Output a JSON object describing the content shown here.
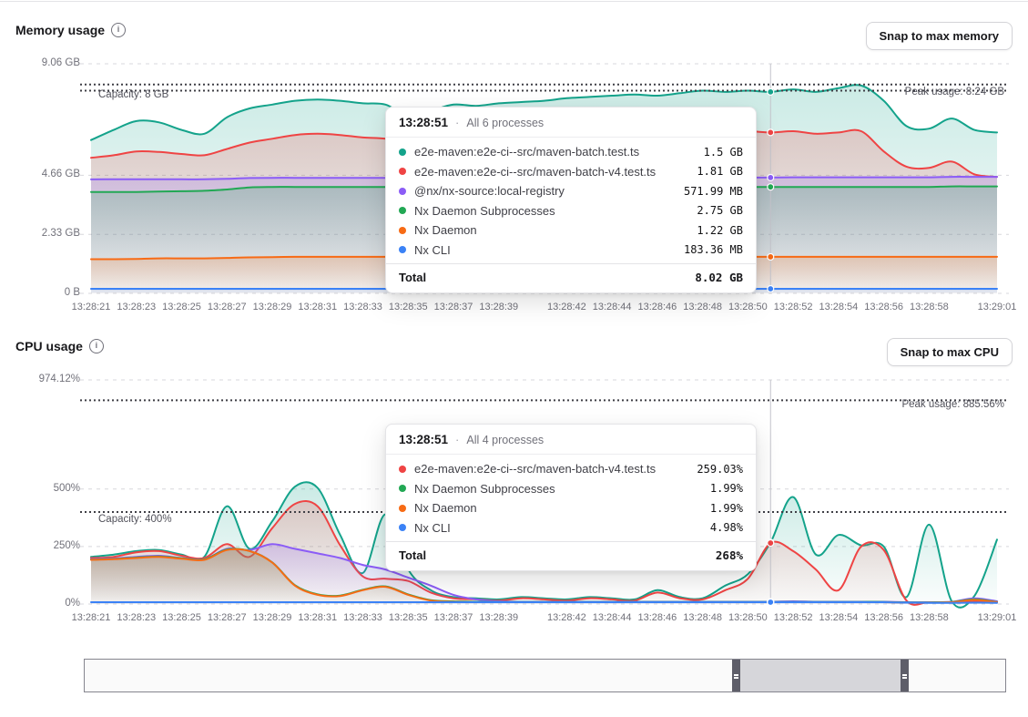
{
  "memory_section": {
    "title": "Memory usage",
    "button": "Snap to max memory",
    "tooltip": {
      "time": "13:28:51",
      "separator": "·",
      "subtitle": "All 6 processes",
      "rows": [
        {
          "name": "e2e-maven:e2e-ci--src/maven-batch.test.ts",
          "value": "1.5 GB",
          "color": "#14a38b"
        },
        {
          "name": "e2e-maven:e2e-ci--src/maven-batch-v4.test.ts",
          "value": "1.81 GB",
          "color": "#ef4444"
        },
        {
          "name": "@nx/nx-source:local-registry",
          "value": "571.99 MB",
          "color": "#8b5cf6"
        },
        {
          "name": "Nx Daemon Subprocesses",
          "value": "2.75 GB",
          "color": "#22a854"
        },
        {
          "name": "Nx Daemon",
          "value": "1.22 GB",
          "color": "#f76b15"
        },
        {
          "name": "Nx CLI",
          "value": "183.36 MB",
          "color": "#3b82f6"
        }
      ],
      "total_label": "Total",
      "total_value": "8.02 GB"
    }
  },
  "cpu_section": {
    "title": "CPU usage",
    "button": "Snap to max CPU",
    "tooltip": {
      "time": "13:28:51",
      "separator": "·",
      "subtitle": "All 4 processes",
      "rows": [
        {
          "name": "e2e-maven:e2e-ci--src/maven-batch-v4.test.ts",
          "value": "259.03%",
          "color": "#ef4444"
        },
        {
          "name": "Nx Daemon Subprocesses",
          "value": "1.99%",
          "color": "#22a854"
        },
        {
          "name": "Nx Daemon",
          "value": "1.99%",
          "color": "#f76b15"
        },
        {
          "name": "Nx CLI",
          "value": "4.98%",
          "color": "#3b82f6"
        }
      ],
      "total_label": "Total",
      "total_value": "268%"
    }
  },
  "chart_data": [
    {
      "id": "memory",
      "type": "area",
      "title": "Memory usage",
      "unit": "GB",
      "ylim": [
        0,
        9.06
      ],
      "grid": true,
      "yticks": [
        {
          "v": 9.06,
          "label": "9.06 GB"
        },
        {
          "v": 4.66,
          "label": "4.66 GB"
        },
        {
          "v": 2.33,
          "label": "2.33 GB"
        },
        {
          "v": 0,
          "label": "0 B"
        }
      ],
      "xticks": [
        {
          "t": 0,
          "label": "13:28:21"
        },
        {
          "t": 2,
          "label": "13:28:23"
        },
        {
          "t": 4,
          "label": "13:28:25"
        },
        {
          "t": 6,
          "label": "13:28:27"
        },
        {
          "t": 8,
          "label": "13:28:29"
        },
        {
          "t": 10,
          "label": "13:28:31"
        },
        {
          "t": 12,
          "label": "13:28:33"
        },
        {
          "t": 14,
          "label": "13:28:35"
        },
        {
          "t": 16,
          "label": "13:28:37"
        },
        {
          "t": 18,
          "label": "13:28:39"
        },
        {
          "t": 21,
          "label": "13:28:42"
        },
        {
          "t": 23,
          "label": "13:28:44"
        },
        {
          "t": 25,
          "label": "13:28:46"
        },
        {
          "t": 27,
          "label": "13:28:48"
        },
        {
          "t": 29,
          "label": "13:28:50"
        },
        {
          "t": 31,
          "label": "13:28:52"
        },
        {
          "t": 33,
          "label": "13:28:54"
        },
        {
          "t": 35,
          "label": "13:28:56"
        },
        {
          "t": 37,
          "label": "13:28:58"
        },
        {
          "t": 40,
          "label": "13:29:01"
        }
      ],
      "capacity": {
        "v": 8,
        "label": "Capacity: 8 GB"
      },
      "peak": {
        "v": 8.24,
        "label": "Peak usage: 8.24 GB"
      },
      "crosshair_t": 30,
      "series": [
        {
          "name": "e2e-maven:e2e-ci--src/maven-batch.test.ts",
          "color": "#14a38b",
          "values": [
            6.05,
            6.45,
            6.8,
            6.75,
            6.45,
            6.3,
            6.95,
            7.3,
            7.45,
            7.6,
            7.65,
            7.6,
            7.5,
            7.45,
            7.0,
            7.2,
            7.45,
            7.4,
            7.5,
            7.55,
            7.6,
            7.7,
            7.75,
            7.8,
            7.85,
            7.8,
            7.9,
            8.0,
            7.95,
            8.0,
            7.95,
            8.05,
            7.95,
            8.1,
            8.2,
            7.6,
            6.6,
            6.5,
            6.9,
            6.45,
            6.35
          ]
        },
        {
          "name": "e2e-maven:e2e-ci--src/maven-batch-v4.test.ts",
          "color": "#ef4444",
          "values": [
            5.35,
            5.45,
            5.6,
            5.58,
            5.5,
            5.45,
            5.7,
            5.95,
            6.1,
            6.25,
            6.3,
            6.25,
            6.15,
            6.1,
            5.9,
            6.0,
            6.1,
            6.1,
            6.15,
            6.15,
            6.2,
            6.25,
            6.3,
            6.3,
            6.35,
            6.3,
            6.35,
            6.4,
            6.35,
            6.4,
            6.35,
            6.4,
            6.3,
            6.35,
            6.4,
            5.6,
            5.0,
            4.95,
            5.2,
            4.7,
            4.6
          ]
        },
        {
          "name": "@nx/nx-source:local-registry",
          "color": "#8b5cf6",
          "values": [
            4.5,
            4.5,
            4.5,
            4.5,
            4.5,
            4.5,
            4.52,
            4.55,
            4.56,
            4.56,
            4.56,
            4.56,
            4.56,
            4.56,
            4.56,
            4.56,
            4.56,
            4.56,
            4.56,
            4.56,
            4.57,
            4.57,
            4.57,
            4.57,
            4.57,
            4.57,
            4.57,
            4.57,
            4.57,
            4.57,
            4.57,
            4.58,
            4.58,
            4.58,
            4.58,
            4.58,
            4.58,
            4.58,
            4.6,
            4.6,
            4.6
          ]
        },
        {
          "name": "Nx Daemon Subprocesses",
          "color": "#22a854",
          "values": [
            4.0,
            4.0,
            4.0,
            4.02,
            4.03,
            4.05,
            4.1,
            4.18,
            4.2,
            4.2,
            4.2,
            4.2,
            4.2,
            4.2,
            4.2,
            4.2,
            4.2,
            4.2,
            4.2,
            4.2,
            4.2,
            4.2,
            4.2,
            4.2,
            4.2,
            4.2,
            4.2,
            4.2,
            4.2,
            4.2,
            4.2,
            4.2,
            4.2,
            4.2,
            4.2,
            4.2,
            4.2,
            4.2,
            4.22,
            4.22,
            4.22
          ]
        },
        {
          "name": "Nx Daemon",
          "color": "#f76b15",
          "values": [
            1.35,
            1.35,
            1.36,
            1.38,
            1.38,
            1.38,
            1.4,
            1.42,
            1.43,
            1.44,
            1.44,
            1.44,
            1.44,
            1.44,
            1.44,
            1.44,
            1.44,
            1.44,
            1.44,
            1.44,
            1.44,
            1.44,
            1.44,
            1.44,
            1.44,
            1.44,
            1.44,
            1.44,
            1.44,
            1.44,
            1.44,
            1.44,
            1.44,
            1.44,
            1.44,
            1.44,
            1.44,
            1.44,
            1.44,
            1.44,
            1.44
          ]
        },
        {
          "name": "Nx CLI",
          "color": "#3b82f6",
          "values": [
            0.18,
            0.18,
            0.18,
            0.18,
            0.18,
            0.18,
            0.18,
            0.18,
            0.18,
            0.18,
            0.18,
            0.18,
            0.18,
            0.18,
            0.18,
            0.18,
            0.18,
            0.18,
            0.18,
            0.18,
            0.18,
            0.18,
            0.18,
            0.18,
            0.18,
            0.18,
            0.18,
            0.18,
            0.18,
            0.18,
            0.18,
            0.18,
            0.18,
            0.18,
            0.18,
            0.18,
            0.18,
            0.18,
            0.18,
            0.18,
            0.18
          ]
        }
      ]
    },
    {
      "id": "cpu",
      "type": "area",
      "title": "CPU usage",
      "unit": "%",
      "ylim": [
        0,
        974.12
      ],
      "grid": true,
      "yticks": [
        {
          "v": 974.12,
          "label": "974.12%"
        },
        {
          "v": 500,
          "label": "500%"
        },
        {
          "v": 250,
          "label": "250%"
        },
        {
          "v": 0,
          "label": "0%"
        }
      ],
      "xticks": [
        {
          "t": 0,
          "label": "13:28:21"
        },
        {
          "t": 2,
          "label": "13:28:23"
        },
        {
          "t": 4,
          "label": "13:28:25"
        },
        {
          "t": 6,
          "label": "13:28:27"
        },
        {
          "t": 8,
          "label": "13:28:29"
        },
        {
          "t": 10,
          "label": "13:28:31"
        },
        {
          "t": 12,
          "label": "13:28:33"
        },
        {
          "t": 14,
          "label": "13:28:35"
        },
        {
          "t": 16,
          "label": "13:28:37"
        },
        {
          "t": 18,
          "label": "13:28:39"
        },
        {
          "t": 21,
          "label": "13:28:42"
        },
        {
          "t": 23,
          "label": "13:28:44"
        },
        {
          "t": 25,
          "label": "13:28:46"
        },
        {
          "t": 27,
          "label": "13:28:48"
        },
        {
          "t": 29,
          "label": "13:28:50"
        },
        {
          "t": 31,
          "label": "13:28:52"
        },
        {
          "t": 33,
          "label": "13:28:54"
        },
        {
          "t": 35,
          "label": "13:28:56"
        },
        {
          "t": 37,
          "label": "13:28:58"
        },
        {
          "t": 40,
          "label": "13:29:01"
        }
      ],
      "capacity": {
        "v": 400,
        "label": "Capacity: 400%"
      },
      "peak": {
        "v": 885.56,
        "label": "Peak usage: 885.56%"
      },
      "crosshair_t": 30,
      "series": [
        {
          "name": "e2e-maven:e2e-ci--src/maven-batch.test.ts",
          "color": "#14a38b",
          "values": [
            205,
            215,
            230,
            235,
            215,
            205,
            425,
            240,
            360,
            510,
            505,
            300,
            135,
            390,
            150,
            60,
            30,
            25,
            20,
            30,
            25,
            20,
            30,
            25,
            20,
            60,
            30,
            25,
            80,
            130,
            268,
            465,
            215,
            300,
            255,
            250,
            30,
            345,
            12,
            35,
            280
          ]
        },
        {
          "name": "e2e-maven:e2e-ci--src/maven-batch-v4.test.ts",
          "color": "#ef4444",
          "values": [
            200,
            205,
            225,
            230,
            210,
            200,
            260,
            205,
            330,
            435,
            425,
            255,
            120,
            110,
            100,
            50,
            25,
            20,
            15,
            25,
            20,
            15,
            25,
            20,
            15,
            50,
            25,
            20,
            60,
            110,
            265,
            230,
            150,
            60,
            250,
            235,
            15,
            8,
            6,
            10,
            8
          ]
        },
        {
          "name": "@nx/nx-source:local-registry",
          "color": "#8b5cf6",
          "values": [
            195,
            198,
            205,
            210,
            200,
            195,
            240,
            235,
            260,
            240,
            220,
            200,
            170,
            150,
            115,
            80,
            40,
            20,
            12,
            10,
            10,
            10,
            10,
            10,
            10,
            10,
            10,
            10,
            10,
            10,
            10,
            12,
            10,
            10,
            10,
            10,
            8,
            8,
            10,
            25,
            12
          ]
        },
        {
          "name": "Nx Daemon Subprocesses",
          "color": "#22a854",
          "values": [
            193,
            196,
            202,
            207,
            199,
            194,
            237,
            231,
            181,
            82,
            42,
            37,
            62,
            77,
            42,
            17,
            12,
            10,
            9,
            9,
            9,
            9,
            9,
            9,
            9,
            9,
            9,
            9,
            9,
            9,
            9,
            9,
            9,
            9,
            9,
            9,
            7,
            7,
            9,
            20,
            9
          ]
        },
        {
          "name": "Nx Daemon",
          "color": "#f76b15",
          "values": [
            192,
            195,
            200,
            205,
            197,
            192,
            235,
            230,
            180,
            80,
            40,
            35,
            60,
            75,
            40,
            15,
            10,
            8,
            8,
            8,
            8,
            8,
            8,
            8,
            8,
            8,
            8,
            8,
            8,
            8,
            8,
            8,
            8,
            8,
            8,
            8,
            6,
            6,
            8,
            18,
            8
          ]
        },
        {
          "name": "Nx CLI",
          "color": "#3b82f6",
          "values": [
            8,
            8,
            8,
            8,
            8,
            8,
            8,
            8,
            8,
            8,
            8,
            8,
            8,
            8,
            8,
            8,
            8,
            8,
            8,
            8,
            8,
            8,
            8,
            8,
            8,
            8,
            8,
            8,
            8,
            8,
            8,
            8,
            8,
            8,
            8,
            8,
            6,
            5,
            5,
            6,
            5
          ]
        }
      ]
    }
  ]
}
